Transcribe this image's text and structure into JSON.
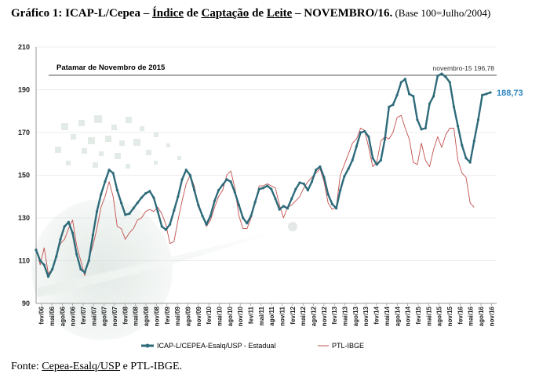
{
  "caption": {
    "prefix": "Gráfico 1: ICAP-L/Cepea – ",
    "u1": "Índice",
    "mid1": " de ",
    "u2": "Captação",
    "mid2": " de ",
    "u3": "Leite",
    "mid3": " – NOVEMBRO/16.",
    "suffix": " (Base 100=Julho/2004)"
  },
  "source": {
    "prefix": "Fonte: ",
    "underlined": "Cepea-Esalq/USP",
    "rest": " e PTL-IBGE."
  },
  "chart_data": {
    "type": "line",
    "ylim": [
      90,
      210
    ],
    "yticks": [
      "90",
      "110",
      "130",
      "150",
      "170",
      "190",
      "210"
    ],
    "x_tick_labels": [
      "fev/06",
      "mai/06",
      "ago/06",
      "nov/06",
      "fev/07",
      "mai/07",
      "ago/07",
      "nov/07",
      "fev/08",
      "mai/08",
      "ago/08",
      "nov/08",
      "fev/09",
      "mai/09",
      "ago/09",
      "nov/09",
      "fev/10",
      "mai/10",
      "ago/10",
      "nov/10",
      "fev/11",
      "mai/11",
      "ago/11",
      "nov/11",
      "fev/12",
      "mai/12",
      "ago/12",
      "nov/12",
      "fev/13",
      "mai/13",
      "ago/13",
      "nov/13",
      "fev/14",
      "mai/14",
      "ago/14",
      "nov/14",
      "fev/15",
      "mai/15",
      "ago/15",
      "nov/15",
      "fev/16",
      "mai/16",
      "ago/16",
      "nov/16"
    ],
    "reference": {
      "label": "Patamar de Novembro de 2015",
      "value": 196.78,
      "annotation": "novembro-15 196,78"
    },
    "last_label": "188,73",
    "series": [
      {
        "name": "ICAP-L/CEPEA-Esalq/USP - Estadual",
        "color": "#2E6B7A",
        "values": [
          115,
          110,
          108,
          102.5,
          106,
          112,
          120,
          126,
          128,
          123,
          113,
          106,
          104.5,
          110,
          122,
          133,
          141,
          147,
          152.5,
          151,
          143,
          137,
          131.5,
          132,
          134.5,
          137,
          139.5,
          141.5,
          142.5,
          139.5,
          133,
          126,
          124.5,
          127,
          133.5,
          140,
          148,
          152.5,
          150,
          143,
          136,
          131,
          127,
          131,
          138,
          143,
          145.5,
          148,
          147,
          142,
          136,
          130,
          127.5,
          131,
          137.5,
          143.5,
          144,
          145,
          143.5,
          139,
          134,
          135.5,
          134.5,
          139,
          143.5,
          146.5,
          146,
          143,
          147,
          152.5,
          154,
          149,
          141,
          136.5,
          134.5,
          143,
          149.5,
          153,
          157,
          163.5,
          170,
          170.5,
          168,
          158,
          155,
          157,
          167,
          182,
          183,
          187.5,
          193.5,
          195,
          188,
          187,
          176,
          171.5,
          172,
          183.5,
          187,
          196.5,
          197.5,
          196,
          193.5,
          182,
          173,
          164,
          158,
          156,
          166,
          176,
          187.5,
          188,
          188.73
        ]
      },
      {
        "name": "PTL-IBGE",
        "color": "#C0504D",
        "values": [
          116,
          108,
          116,
          104,
          106,
          113,
          118,
          120,
          125,
          129,
          117,
          110,
          103,
          111,
          117,
          125,
          135,
          140,
          147,
          140,
          126,
          125,
          120,
          123,
          125,
          129,
          130,
          133,
          134,
          133,
          135,
          132,
          127,
          118,
          119,
          129,
          138,
          146,
          150,
          145,
          135,
          131,
          126,
          129,
          135,
          140,
          143,
          150,
          152,
          144,
          131,
          125,
          125,
          130,
          137,
          145,
          145,
          146,
          145,
          144,
          136,
          130,
          135,
          136,
          138,
          140,
          144,
          147,
          149,
          151,
          153,
          147,
          137,
          134,
          135,
          150,
          155,
          160,
          165,
          167,
          172,
          171,
          163,
          154,
          156,
          166,
          168,
          167,
          170,
          177,
          178,
          172,
          167,
          156,
          155,
          165,
          157,
          154,
          162,
          168,
          163,
          169,
          172,
          172,
          157,
          151,
          149,
          137,
          135
        ]
      }
    ]
  },
  "legend": {
    "series1": "ICAP-L/CEPEA-Esalq/USP - Estadual",
    "series2": "PTL-IBGE"
  }
}
